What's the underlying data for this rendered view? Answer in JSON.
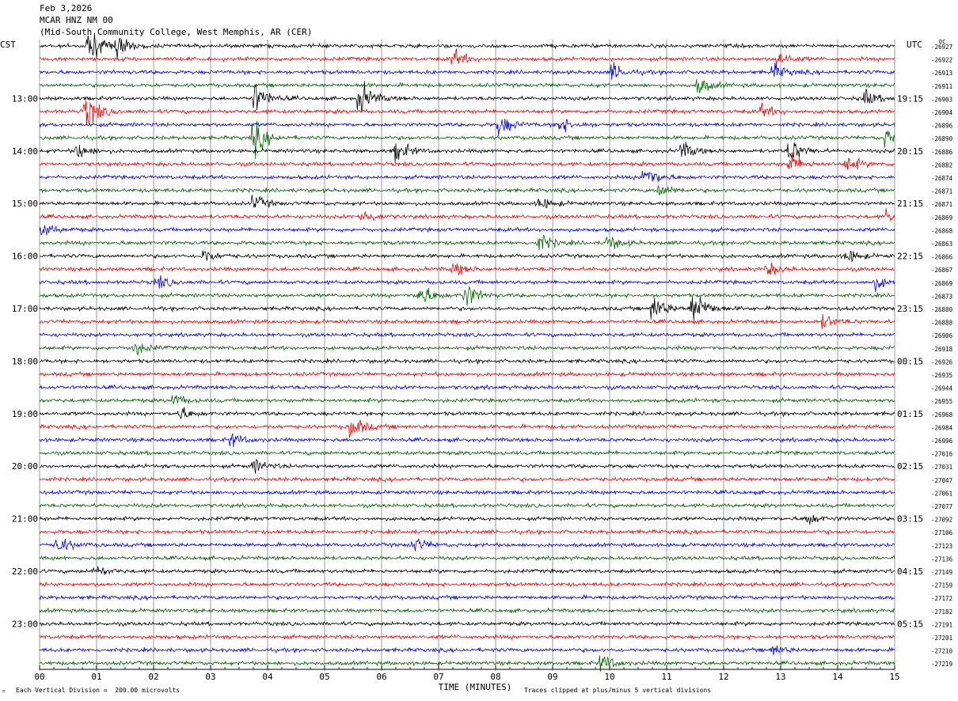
{
  "header": {
    "date": "Feb 3,2026",
    "station": "MCAR HNZ NM 00",
    "location": "(Mid-South Community College, West Memphis, AR (CER)"
  },
  "left_label": "CST",
  "right_label": "UTC",
  "dc_label": "DC",
  "footer": {
    "scale": "Each Vertical Division =  200.00 microvolts",
    "clip": "Traces clipped at plus/minus 5 vertical divisions",
    "mark": "♒"
  },
  "chart_data": {
    "type": "line",
    "subtype": "helicorder",
    "xlabel": "TIME (MINUTES)",
    "xlim": [
      0,
      15
    ],
    "x_ticks": [
      "00",
      "01",
      "02",
      "03",
      "04",
      "05",
      "06",
      "07",
      "08",
      "09",
      "10",
      "11",
      "12",
      "13",
      "14",
      "15"
    ],
    "row_minutes": 15,
    "trace_colors": [
      "#000000",
      "#ff0000",
      "#0000ff",
      "#006400"
    ],
    "cst_labels": [
      "13:00",
      "14:00",
      "15:00",
      "16:00",
      "17:00",
      "18:00",
      "19:00",
      "20:00",
      "21:00",
      "22:00",
      "23:00"
    ],
    "utc_labels": [
      "19:15",
      "20:15",
      "21:15",
      "22:15",
      "23:15",
      "00:15",
      "01:15",
      "02:15",
      "03:15",
      "04:15",
      "05:15"
    ],
    "dc_offsets": [
      -26927,
      -26922,
      -26913,
      -26911,
      -26903,
      -26904,
      -26896,
      -26890,
      -26886,
      -26882,
      -26874,
      -26871,
      -26871,
      -26869,
      -26868,
      -26863,
      -26866,
      -26867,
      -26869,
      -26873,
      -26880,
      -26888,
      -26906,
      -26918,
      -26926,
      -26935,
      -26944,
      -26955,
      -26968,
      -26984,
      -26996,
      -27016,
      -27031,
      -27047,
      -27061,
      -27077,
      -27092,
      -27106,
      -27123,
      -27136,
      -27149,
      -27159,
      -27172,
      -27182,
      -27191,
      -27201,
      -27210,
      -27219
    ],
    "events": [
      {
        "row": 0,
        "minute": 0.9,
        "amplitude": 3.2
      },
      {
        "row": 0,
        "minute": 1.4,
        "amplitude": 2.0
      },
      {
        "row": 1,
        "minute": 7.3,
        "amplitude": 1.6
      },
      {
        "row": 1,
        "minute": 13.0,
        "amplitude": 1.5
      },
      {
        "row": 2,
        "minute": 10.1,
        "amplitude": 1.5
      },
      {
        "row": 2,
        "minute": 12.9,
        "amplitude": 1.4
      },
      {
        "row": 3,
        "minute": 11.6,
        "amplitude": 1.5
      },
      {
        "row": 4,
        "minute": 3.8,
        "amplitude": 3.0
      },
      {
        "row": 4,
        "minute": 5.65,
        "amplitude": 3.2
      },
      {
        "row": 4,
        "minute": 14.5,
        "amplitude": 1.5
      },
      {
        "row": 5,
        "minute": 0.85,
        "amplitude": 3.3
      },
      {
        "row": 5,
        "minute": 12.7,
        "amplitude": 1.2
      },
      {
        "row": 6,
        "minute": 8.1,
        "amplitude": 2.0
      },
      {
        "row": 6,
        "minute": 9.15,
        "amplitude": 1.6
      },
      {
        "row": 7,
        "minute": 3.8,
        "amplitude": 3.0
      },
      {
        "row": 7,
        "minute": 14.9,
        "amplitude": 1.8
      },
      {
        "row": 8,
        "minute": 0.7,
        "amplitude": 1.5
      },
      {
        "row": 8,
        "minute": 6.3,
        "amplitude": 2.0
      },
      {
        "row": 8,
        "minute": 11.3,
        "amplitude": 1.6
      },
      {
        "row": 8,
        "minute": 13.2,
        "amplitude": 2.3
      },
      {
        "row": 9,
        "minute": 13.2,
        "amplitude": 1.8
      },
      {
        "row": 9,
        "minute": 14.2,
        "amplitude": 1.5
      },
      {
        "row": 10,
        "minute": 10.65,
        "amplitude": 2.5
      },
      {
        "row": 11,
        "minute": 10.9,
        "amplitude": 1.3
      },
      {
        "row": 12,
        "minute": 3.8,
        "amplitude": 1.3
      },
      {
        "row": 12,
        "minute": 8.8,
        "amplitude": 1.2
      },
      {
        "row": 13,
        "minute": 5.7,
        "amplitude": 1.3
      },
      {
        "row": 13,
        "minute": 14.9,
        "amplitude": 1.3
      },
      {
        "row": 14,
        "minute": 0.1,
        "amplitude": 1.2
      },
      {
        "row": 15,
        "minute": 8.8,
        "amplitude": 1.6
      },
      {
        "row": 15,
        "minute": 10.0,
        "amplitude": 1.3
      },
      {
        "row": 16,
        "minute": 2.9,
        "amplitude": 1.4
      },
      {
        "row": 16,
        "minute": 14.2,
        "amplitude": 1.3
      },
      {
        "row": 17,
        "minute": 7.3,
        "amplitude": 1.2
      },
      {
        "row": 17,
        "minute": 12.8,
        "amplitude": 1.2
      },
      {
        "row": 18,
        "minute": 2.1,
        "amplitude": 1.2
      },
      {
        "row": 18,
        "minute": 14.7,
        "amplitude": 1.3
      },
      {
        "row": 19,
        "minute": 6.7,
        "amplitude": 2.3
      },
      {
        "row": 19,
        "minute": 7.5,
        "amplitude": 2.3
      },
      {
        "row": 20,
        "minute": 10.8,
        "amplitude": 2.5
      },
      {
        "row": 20,
        "minute": 11.5,
        "amplitude": 4.0
      },
      {
        "row": 21,
        "minute": 13.8,
        "amplitude": 1.2
      },
      {
        "row": 23,
        "minute": 1.7,
        "amplitude": 1.3
      },
      {
        "row": 27,
        "minute": 2.4,
        "amplitude": 1.1
      },
      {
        "row": 28,
        "minute": 2.5,
        "amplitude": 1.2
      },
      {
        "row": 29,
        "minute": 5.5,
        "amplitude": 2.2
      },
      {
        "row": 30,
        "minute": 3.4,
        "amplitude": 1.2
      },
      {
        "row": 32,
        "minute": 3.8,
        "amplitude": 1.2
      },
      {
        "row": 36,
        "minute": 13.5,
        "amplitude": 1.2
      },
      {
        "row": 38,
        "minute": 0.35,
        "amplitude": 1.6
      },
      {
        "row": 38,
        "minute": 6.6,
        "amplitude": 1.4
      },
      {
        "row": 40,
        "minute": 1.0,
        "amplitude": 1.1
      },
      {
        "row": 46,
        "minute": 12.9,
        "amplitude": 1.0
      },
      {
        "row": 47,
        "minute": 9.9,
        "amplitude": 1.5
      }
    ]
  }
}
